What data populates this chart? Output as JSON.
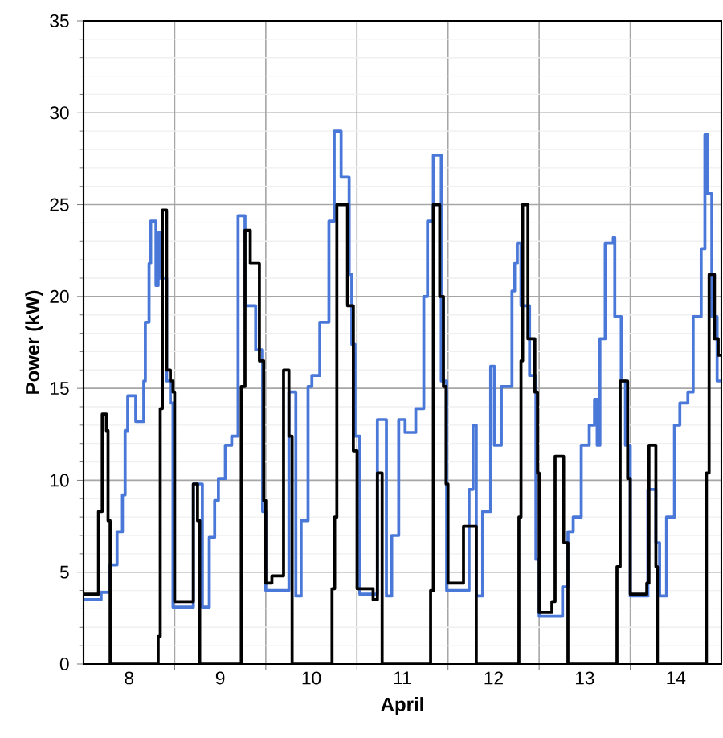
{
  "chart_data": {
    "type": "step",
    "xlabel": "April",
    "ylabel": "Power (kW)",
    "xlim": [
      8,
      15
    ],
    "ylim": [
      0,
      35
    ],
    "xticks": [
      {
        "value": 8.5,
        "label": "8"
      },
      {
        "value": 9,
        "label": null
      },
      {
        "value": 9.5,
        "label": "9"
      },
      {
        "value": 10,
        "label": null
      },
      {
        "value": 10.5,
        "label": "10"
      },
      {
        "value": 11,
        "label": null
      },
      {
        "value": 11.5,
        "label": "11"
      },
      {
        "value": 12,
        "label": null
      },
      {
        "value": 12.5,
        "label": "12"
      },
      {
        "value": 13,
        "label": null
      },
      {
        "value": 13.5,
        "label": "13"
      },
      {
        "value": 14,
        "label": null
      },
      {
        "value": 14.5,
        "label": "14"
      }
    ],
    "yticks": [
      0,
      5,
      10,
      15,
      20,
      25,
      30,
      35
    ],
    "grid": true,
    "series": [
      {
        "color": "#4a78d8",
        "x": [
          8.0,
          8.193,
          8.281,
          8.368,
          8.427,
          8.456,
          8.485,
          8.573,
          8.661,
          8.678,
          8.719,
          8.737,
          8.795,
          8.819,
          8.842,
          8.912,
          8.953,
          8.982,
          9.205,
          9.304,
          9.38,
          9.439,
          9.48,
          9.556,
          9.626,
          9.696,
          9.772,
          9.889,
          9.965,
          10.0,
          10.254,
          10.33,
          10.388,
          10.464,
          10.506,
          10.593,
          10.693,
          10.751,
          10.827,
          10.915,
          10.944,
          10.979,
          11.032,
          11.225,
          11.324,
          11.382,
          11.459,
          11.529,
          11.646,
          11.734,
          11.775,
          11.839,
          11.926,
          11.985,
          12.231,
          12.275,
          12.31,
          12.38,
          12.468,
          12.509,
          12.585,
          12.702,
          12.731,
          12.76,
          12.801,
          12.895,
          12.965,
          13.0,
          13.257,
          13.316,
          13.374,
          13.462,
          13.55,
          13.608,
          13.637,
          13.667,
          13.725,
          13.813,
          13.83,
          13.901,
          13.947,
          14.0,
          14.193,
          14.281,
          14.322,
          14.398,
          14.485,
          14.544,
          14.632,
          14.69,
          14.778,
          14.819,
          14.848,
          14.895,
          14.953,
          15.0
        ],
        "values": [
          3.5,
          3.9,
          5.4,
          7.2,
          9.2,
          12.7,
          14.6,
          13.2,
          15.4,
          18.6,
          21.8,
          24.1,
          20.6,
          23.5,
          21.0,
          15.4,
          14.2,
          3.1,
          9.8,
          3.1,
          6.9,
          8.9,
          10.1,
          11.9,
          12.4,
          24.4,
          19.5,
          17.1,
          8.3,
          4.0,
          14.8,
          3.7,
          7.8,
          15.1,
          15.7,
          18.6,
          24.1,
          29.0,
          26.5,
          21.2,
          17.4,
          12.4,
          3.8,
          13.3,
          3.7,
          7.0,
          13.3,
          12.6,
          13.9,
          20.0,
          24.1,
          27.7,
          15.4,
          4.0,
          9.5,
          13.0,
          3.7,
          8.3,
          16.2,
          11.9,
          15.1,
          20.3,
          21.8,
          22.9,
          19.5,
          15.7,
          5.7,
          2.6,
          4.2,
          7.2,
          8.0,
          11.9,
          13.0,
          14.4,
          11.9,
          17.7,
          22.9,
          23.2,
          18.9,
          15.4,
          11.9,
          3.7,
          9.5,
          6.6,
          3.7,
          8.0,
          13.0,
          14.2,
          14.8,
          18.9,
          22.6,
          28.8,
          25.6,
          18.9,
          15.4,
          15.4
        ]
      },
      {
        "color": "#000000",
        "x": [
          8.0,
          8.164,
          8.205,
          8.251,
          8.269,
          8.292,
          8.819,
          8.842,
          8.865,
          8.912,
          8.953,
          8.982,
          9.0,
          9.205,
          9.251,
          9.275,
          9.731,
          9.772,
          9.83,
          9.93,
          9.977,
          10.0,
          10.067,
          10.195,
          10.254,
          10.289,
          10.727,
          10.756,
          10.78,
          10.897,
          10.961,
          11.002,
          11.178,
          11.225,
          11.277,
          11.809,
          11.839,
          11.909,
          11.95,
          11.979,
          12.0,
          12.17,
          12.31,
          12.778,
          12.801,
          12.819,
          12.877,
          12.953,
          12.982,
          13.0,
          13.14,
          13.175,
          13.269,
          13.316,
          13.854,
          13.889,
          13.971,
          14.0,
          14.181,
          14.205,
          14.281,
          14.298,
          14.836,
          14.865,
          14.924,
          14.965,
          15.0
        ],
        "values": [
          3.8,
          8.3,
          13.6,
          12.7,
          7.8,
          0,
          1.5,
          13.9,
          24.7,
          16.0,
          15.4,
          14.8,
          3.4,
          9.8,
          7.8,
          0,
          15.1,
          23.6,
          21.8,
          16.5,
          8.9,
          4.4,
          4.8,
          16.0,
          12.4,
          0,
          4.1,
          8.0,
          25.0,
          19.5,
          11.6,
          4.1,
          3.5,
          10.4,
          0,
          4.0,
          25.0,
          20.0,
          15.1,
          9.8,
          4.4,
          7.5,
          0,
          8.0,
          16.5,
          25.0,
          17.7,
          14.8,
          10.4,
          2.8,
          3.4,
          11.3,
          6.6,
          0,
          5.3,
          15.4,
          10.1,
          3.8,
          4.4,
          11.9,
          5.3,
          0,
          10.4,
          21.2,
          17.7,
          16.8,
          16.8
        ]
      }
    ]
  }
}
